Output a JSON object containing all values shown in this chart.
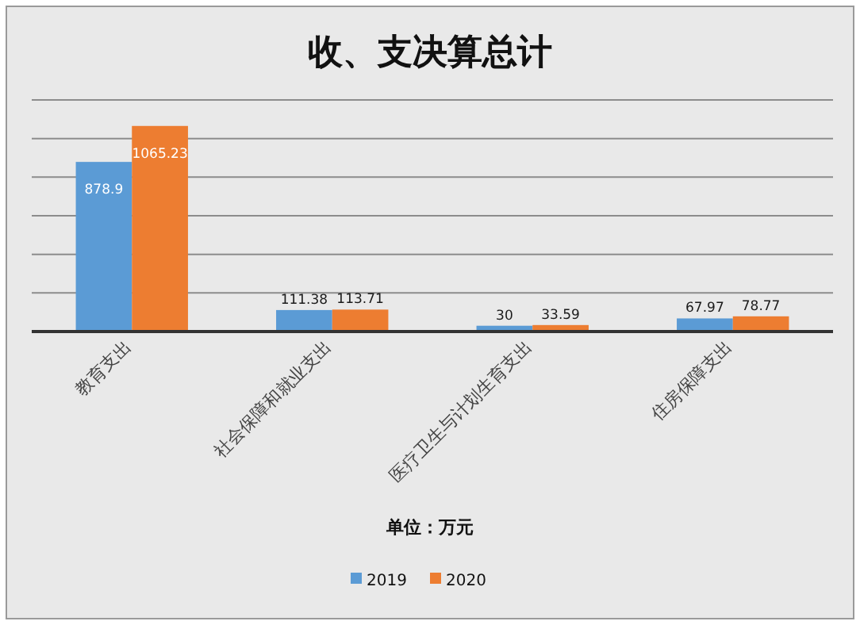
{
  "chart_data": {
    "type": "bar",
    "title": "收、支决算总计",
    "xlabel": "单位：万元",
    "categories": [
      "教育支出",
      "社会保障和就业支出",
      "医疗卫生与计划生育支出",
      "住房保障支出"
    ],
    "series": [
      {
        "name": "2019",
        "color": "#5b9bd5",
        "values": [
          878.9,
          111.38,
          30,
          67.97
        ]
      },
      {
        "name": "2020",
        "color": "#ed7d31",
        "values": [
          1065.23,
          113.71,
          33.59,
          78.77
        ]
      }
    ],
    "ylim": [
      0,
      1200
    ],
    "yticks": [
      {
        "value": 0,
        "label": null
      },
      {
        "value": 200,
        "label": null
      },
      {
        "value": 400,
        "label": null
      },
      {
        "value": 600,
        "label": null
      },
      {
        "value": 800,
        "label": null
      },
      {
        "value": 1000,
        "label": null
      },
      {
        "value": 1200,
        "label": null
      }
    ],
    "grid": "y",
    "data_labels": true,
    "legend": "bottom",
    "tick_labels": "x"
  }
}
